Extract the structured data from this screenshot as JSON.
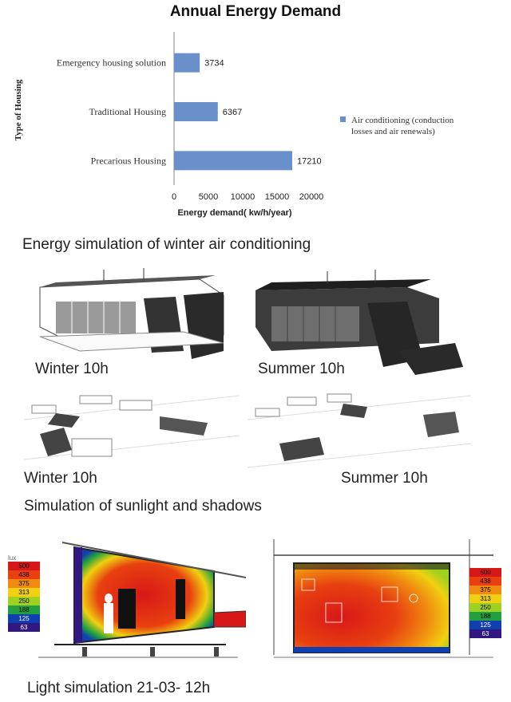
{
  "chart_data": {
    "type": "bar",
    "orientation": "horizontal",
    "title": "Annual Energy Demand",
    "xlabel": "Energy demand( kw/h/year)",
    "ylabel": "Type of Housing",
    "categories": [
      "Emergency housing solution",
      "Traditional Housing",
      "Precarious Housing"
    ],
    "series": [
      {
        "name": "Air conditioning (conduction losses and air renewals)",
        "values": [
          3734,
          6367,
          17210
        ]
      }
    ],
    "data_labels": [
      "3734",
      "6367",
      "17210"
    ],
    "xlim": [
      0,
      20000
    ],
    "xticks": [
      "0",
      "5000",
      "10000",
      "15000",
      "20000"
    ],
    "legend_lines": [
      "Air conditioning (conduction",
      "losses and air renewals)"
    ],
    "legend_position": "right",
    "bar_color": "#6a90cc"
  },
  "captions": {
    "winter_ac": "Energy simulation of winter air conditioning",
    "winter_10h_a": "Winter 10h",
    "summer_10h_a": "Summer 10h",
    "winter_10h_b": "Winter 10h",
    "summer_10h_b": "Summer 10h",
    "sunlight": "Simulation of sunlight and shadows",
    "light_sim": "Light simulation 21-03- 12h"
  },
  "lux_legend": {
    "title": "lux",
    "values": [
      "500",
      "438",
      "375",
      "313",
      "250",
      "188",
      "125",
      "63"
    ],
    "colors": [
      "#d81818",
      "#e84010",
      "#f08a10",
      "#f0d010",
      "#a0d020",
      "#20a040",
      "#1040b0",
      "#301880"
    ]
  }
}
